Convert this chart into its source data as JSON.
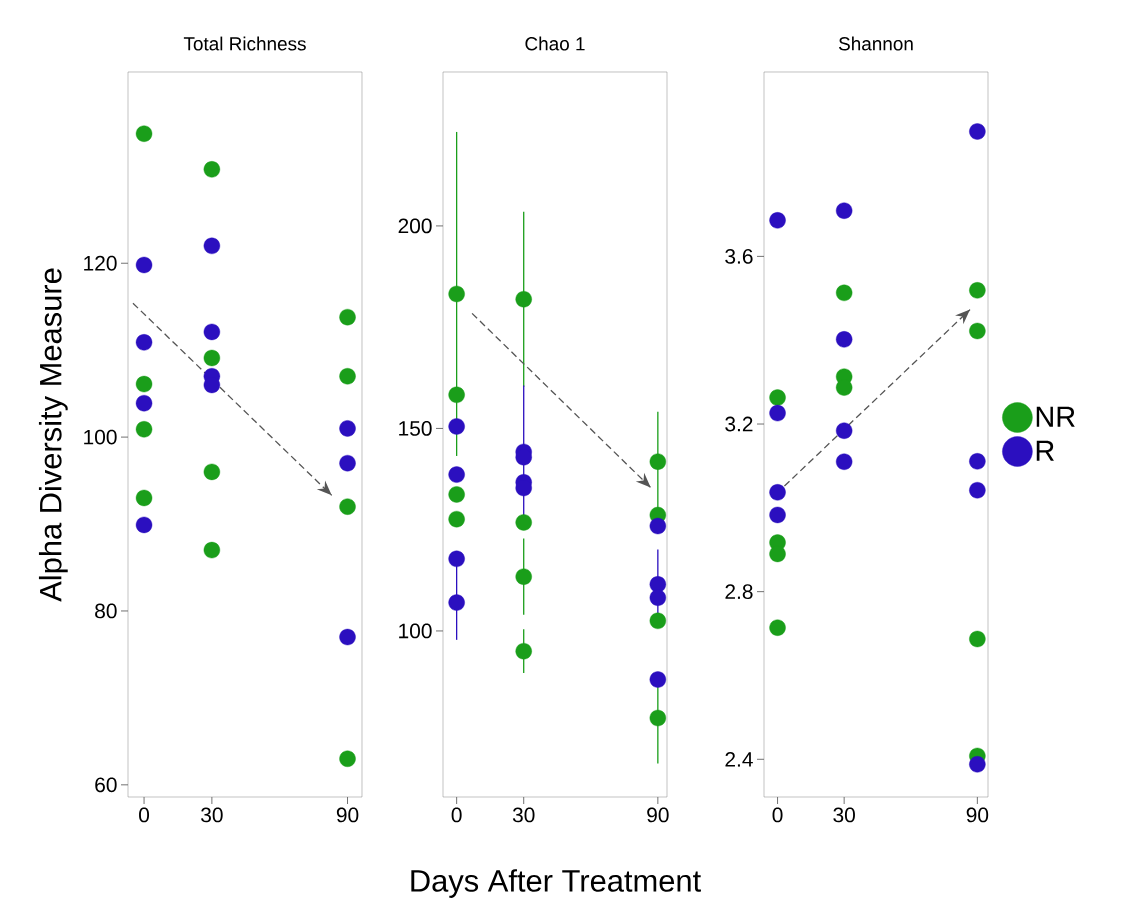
{
  "chart_data": [
    {
      "type": "scatter",
      "title": "Total Richness",
      "ylabel": "Alpha Diversity Measure",
      "xlim": [
        -7.1,
        96.4
      ],
      "xticks": [
        0,
        30,
        90
      ],
      "ylim": [
        58.6,
        142
      ],
      "yticks": [
        60,
        80,
        100,
        120
      ],
      "marker": "circle",
      "series": [
        {
          "color": "#1a9e1a",
          "x": [
            0,
            0,
            0,
            0,
            30,
            30,
            30,
            30,
            90,
            90,
            90,
            90
          ],
          "values": [
            134.9,
            106.1,
            100.9,
            93.0,
            130.8,
            109.1,
            96.0,
            87.0,
            113.8,
            107.0,
            92.0,
            63.0
          ]
        },
        {
          "color": "#2b0fbf",
          "x": [
            0,
            0,
            0,
            0,
            30,
            30,
            30,
            30,
            90,
            90,
            90
          ],
          "values": [
            119.8,
            110.9,
            103.9,
            89.9,
            122.0,
            112.1,
            107.0,
            106.0,
            101.0,
            97.0,
            77.0
          ]
        },
        {
          "type": "line",
          "color": "#555555",
          "line_style": "dashed",
          "marker": "none",
          "x": [
            -4.9,
            83.0
          ],
          "values": [
            115.4,
            93.3
          ]
        }
      ]
    },
    {
      "type": "scatter",
      "title": "Chao 1",
      "xlabel": "Days After Treatment",
      "xlim": [
        -6.1,
        94.1
      ],
      "xticks": [
        0,
        30,
        90
      ],
      "ylim": [
        59,
        238
      ],
      "yticks": [
        100,
        150,
        200
      ],
      "marker": "circle",
      "series": [
        {
          "color": "#1a9e1a",
          "x": [
            0,
            0,
            0,
            0,
            30,
            30,
            30,
            30,
            90,
            90,
            90,
            90
          ],
          "values": [
            183.2,
            158.3,
            133.7,
            127.6,
            181.9,
            126.8,
            113.4,
            95.0,
            141.8,
            128.6,
            102.5,
            78.5
          ],
          "errors": [
            40,
            null,
            null,
            null,
            21.6,
            null,
            9.4,
            5.4,
            12.3,
            null,
            null,
            11.2
          ]
        },
        {
          "color": "#2b0fbf",
          "x": [
            0,
            0,
            0,
            0,
            30,
            30,
            30,
            30,
            90,
            90,
            90,
            90
          ],
          "values": [
            150.5,
            138.6,
            117.8,
            107.0,
            144.2,
            142.9,
            136.7,
            135.3,
            125.9,
            111.5,
            108.2,
            88.0
          ],
          "errors": [
            null,
            null,
            null,
            9.2,
            16.4,
            null,
            null,
            null,
            null,
            8.6,
            null,
            null
          ]
        },
        {
          "type": "line",
          "color": "#555555",
          "line_style": "dashed",
          "marker": "none",
          "x": [
            6.9,
            86.8
          ],
          "values": [
            178.4,
            135.4
          ]
        }
      ]
    },
    {
      "type": "scatter",
      "title": "Shannon",
      "xlim": [
        -6.1,
        94.8
      ],
      "xticks": [
        0,
        30,
        90
      ],
      "ylim": [
        2.31,
        4.04
      ],
      "yticks": [
        2.4,
        2.8,
        3.2,
        3.6
      ],
      "marker": "circle",
      "legend": "right",
      "series": [
        {
          "name": "NR",
          "color": "#1a9e1a",
          "x": [
            0,
            0,
            0,
            0,
            30,
            30,
            30,
            90,
            90,
            90,
            90
          ],
          "values": [
            3.263,
            2.917,
            2.89,
            2.714,
            3.513,
            3.313,
            3.287,
            3.519,
            3.422,
            2.687,
            2.408
          ]
        },
        {
          "name": "R",
          "color": "#2b0fbf",
          "x": [
            0,
            0,
            0,
            0,
            30,
            30,
            30,
            30,
            90,
            90,
            90,
            90
          ],
          "values": [
            3.686,
            3.226,
            3.037,
            2.983,
            3.709,
            3.402,
            3.184,
            3.11,
            3.898,
            3.111,
            3.042,
            2.388
          ]
        },
        {
          "type": "line",
          "color": "#555555",
          "line_style": "dashed",
          "marker": "none",
          "x": [
            3.1,
            86.7
          ],
          "values": [
            3.052,
            3.473
          ]
        }
      ]
    }
  ]
}
